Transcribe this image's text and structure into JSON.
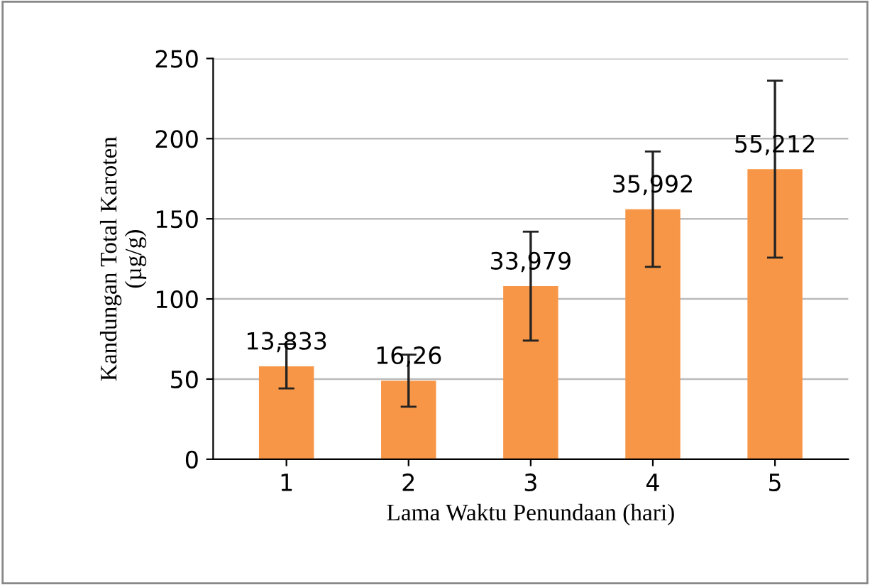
{
  "chart_data": {
    "type": "bar",
    "xlabel": "Lama Waktu Penundaan (hari)",
    "ylabel": "Kandungan Total Karoten\n(µg/g)",
    "categories": [
      "1",
      "2",
      "3",
      "4",
      "5"
    ],
    "values": [
      58,
      49,
      108,
      156,
      181
    ],
    "errors": [
      13.833,
      16.26,
      33.979,
      35.992,
      55.212
    ],
    "annotations": [
      {
        "text": "13,833",
        "x": "1",
        "y": 58
      },
      {
        "text": "16,26",
        "x": "2",
        "y": 49
      },
      {
        "text": "33,979",
        "x": "3",
        "y": 108
      },
      {
        "text": "35,992",
        "x": "4",
        "y": 156
      },
      {
        "text": "55,212",
        "x": "5",
        "y": 181
      }
    ],
    "color": "#f79646",
    "ylim": [
      0,
      250
    ],
    "yticks": [
      0,
      50,
      100,
      150,
      200,
      250
    ],
    "grid": "y",
    "legend": false
  }
}
